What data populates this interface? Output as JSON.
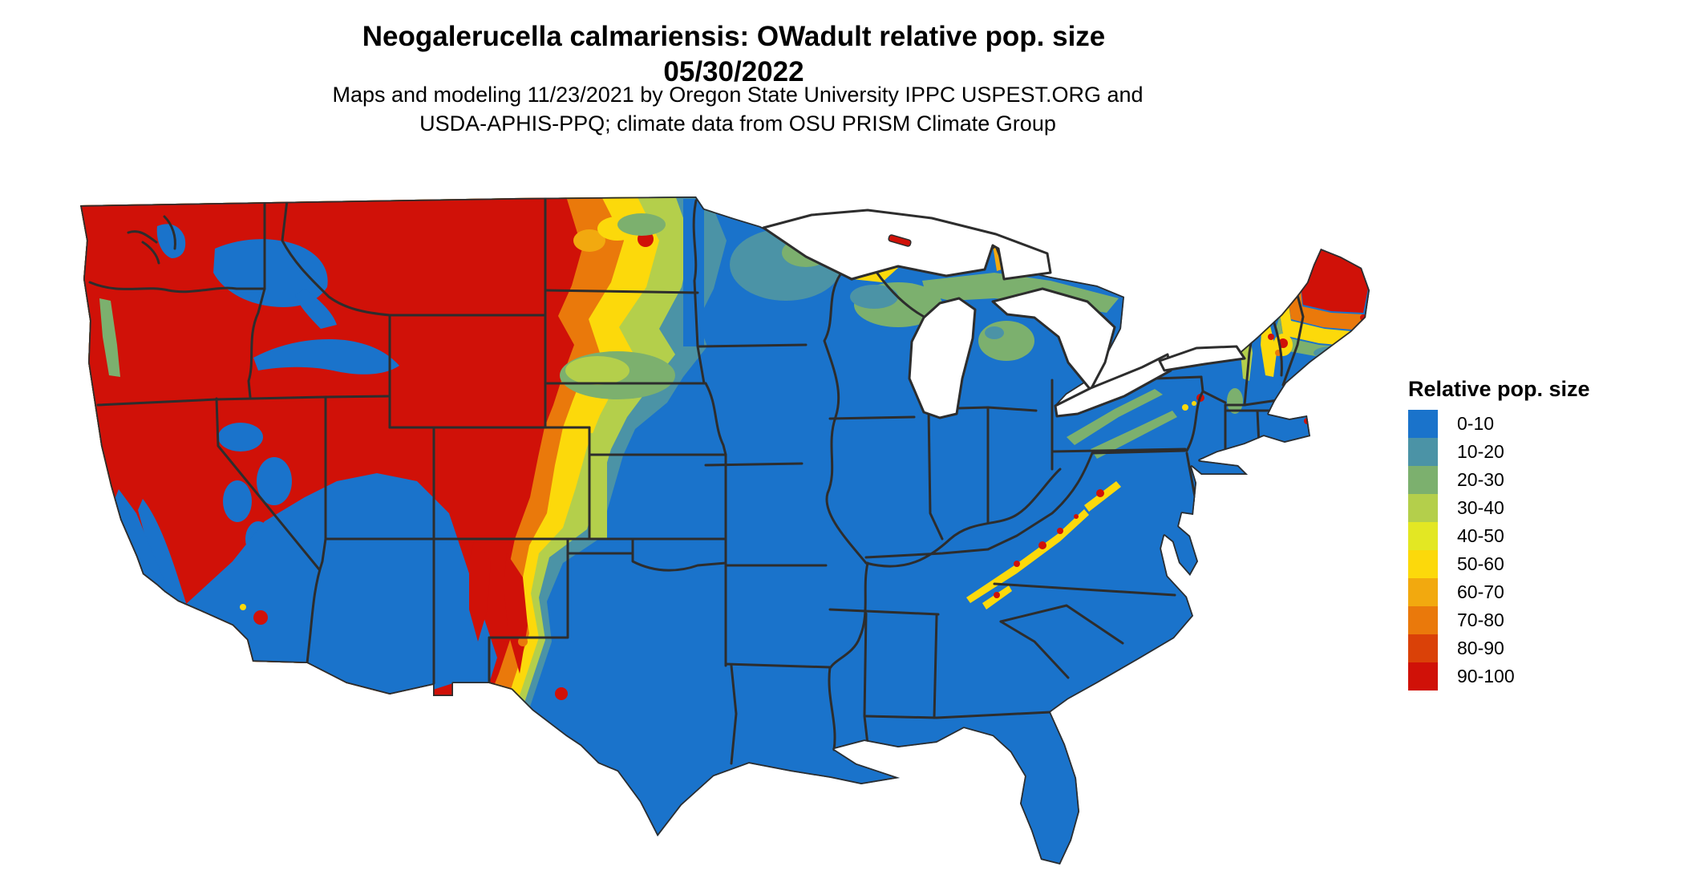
{
  "title": {
    "line1": "Neogalerucella calmariensis: OWadult relative pop. size",
    "line2": "05/30/2022"
  },
  "subtitle": {
    "line1": "Maps and modeling 11/23/2021 by Oregon State University IPPC USPEST.ORG and",
    "line2": "USDA-APHIS-PPQ; climate data from OSU PRISM Climate Group"
  },
  "legend": {
    "title": "Relative pop. size",
    "bins": [
      {
        "label": "0-10",
        "color": "#1a73cb"
      },
      {
        "label": "10-20",
        "color": "#4b93a6"
      },
      {
        "label": "20-30",
        "color": "#7cb06e"
      },
      {
        "label": "30-40",
        "color": "#b4cf4b"
      },
      {
        "label": "40-50",
        "color": "#e3e723"
      },
      {
        "label": "50-60",
        "color": "#fcd90b"
      },
      {
        "label": "60-70",
        "color": "#f2a90f"
      },
      {
        "label": "70-80",
        "color": "#ea790b"
      },
      {
        "label": "80-90",
        "color": "#da4108"
      },
      {
        "label": "90-100",
        "color": "#d01108"
      }
    ]
  },
  "map": {
    "region": "Continental United States",
    "border_color": "#2d2d2d",
    "water_color": "#ffffff",
    "background_color": "#ffffff"
  }
}
